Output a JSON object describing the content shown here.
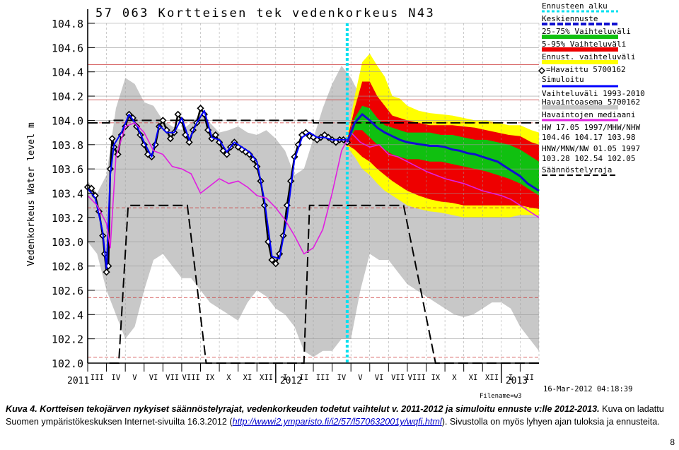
{
  "chart_data": {
    "type": "line",
    "title": "57 063 Kortteisen tek vedenkorkeus N43",
    "ylabel": "Vedenkorkeus Water level m",
    "ylim": [
      102.0,
      104.8
    ],
    "yticks": [
      "104.8",
      "104.6",
      "104.4",
      "104.2",
      "104.0",
      "103.8",
      "103.6",
      "103.4",
      "103.2",
      "103.0",
      "102.8",
      "102.6",
      "102.4",
      "102.2",
      "102.0"
    ],
    "x_months": [
      "III",
      "IV",
      "V",
      "VI",
      "VII",
      "VIII",
      "IX",
      "X",
      "XI",
      "XII",
      "I",
      "II",
      "III",
      "IV",
      "V",
      "VI",
      "VII",
      "VIII",
      "IX",
      "X",
      "XI",
      "XII",
      "I",
      "II"
    ],
    "year_labels": [
      "2011",
      "2012",
      "2013"
    ],
    "filename": "Filename=w3",
    "timestamp": "16-Mar-2012 04:18:39",
    "forecast_start_month_index": 13.8,
    "legend": [
      {
        "label": "Ennusteen alku",
        "color": "#00e0f0",
        "style": "dotted"
      },
      {
        "label": "Keskiennuste",
        "color": "#1010d0",
        "style": "thick-dashed"
      },
      {
        "label": "25-75% Vaihteluväli",
        "color": "#10c010",
        "style": "band"
      },
      {
        "label": "5-95% Vaihteluväli",
        "color": "#ee0000",
        "style": "band"
      },
      {
        "label": "Ennust. vaihteluväli",
        "color": "#ffff00",
        "style": "band"
      },
      {
        "label": "=Havaittu 5700162",
        "color": "#000000",
        "style": "marker"
      },
      {
        "label": "Simuloitu",
        "color": "#0000ff",
        "style": "line"
      },
      {
        "label": "Vaihteluväli 1993-2010 Havaintoasema 5700162",
        "color": "#c8c8c8",
        "style": "band"
      },
      {
        "label": "Havaintojen mediaani",
        "color": "#e020e0",
        "style": "line"
      },
      {
        "label": "HW 17.05 1997/MHW/NHW",
        "color": null,
        "style": "text"
      },
      {
        "label": "104.46 104.17 103.98",
        "color": null,
        "style": "text"
      },
      {
        "label": "HNW/MNW/NW 01.05 1997",
        "color": null,
        "style": "text"
      },
      {
        "label": "103.28 102.54 102.05",
        "color": null,
        "style": "text"
      },
      {
        "label": "Säännöstelyraja",
        "color": "#000000",
        "style": "dashed"
      }
    ],
    "reference_lines": [
      104.46,
      104.17,
      103.98,
      103.28,
      102.54,
      102.05
    ],
    "regulation_upper": {
      "x": [
        0,
        1.15,
        1.15,
        12,
        12,
        24
      ],
      "y": [
        103.98,
        103.98,
        104.0,
        104.0,
        103.98,
        103.98
      ]
    },
    "regulation_lower": {
      "x": [
        1.15,
        1.65,
        2.15,
        5.3,
        6.3,
        11.5,
        11.8,
        12.3,
        13.3,
        16.8,
        18.5,
        22.5,
        22.8,
        24
      ],
      "y": [
        102.0,
        102.0,
        103.3,
        103.3,
        102.0,
        102.0,
        103.3,
        103.3,
        103.3,
        103.3,
        102.0,
        102.0,
        102.0,
        102.0
      ]
    },
    "series": [
      {
        "name": "=Havaittu 5700162",
        "x": [
          0,
          0.2,
          0.4,
          0.6,
          0.8,
          0.9,
          1.0,
          1.1,
          1.2,
          1.3,
          1.4,
          1.6,
          1.8,
          2.0,
          2.2,
          2.4,
          2.6,
          2.8,
          3.0,
          3.2,
          3.4,
          3.6,
          3.8,
          4.0,
          4.2,
          4.4,
          4.6,
          4.8,
          5.0,
          5.2,
          5.4,
          5.6,
          5.8,
          6.0,
          6.2,
          6.4,
          6.6,
          6.8,
          7.0,
          7.2,
          7.4,
          7.6,
          7.8,
          8.0,
          8.2,
          8.4,
          8.6,
          8.8,
          9.0,
          9.2,
          9.4,
          9.6,
          9.8,
          10.0,
          10.2,
          10.4,
          10.6,
          10.8,
          11.0,
          11.2,
          11.4,
          11.6,
          11.8,
          12.0,
          12.2,
          12.4,
          12.6,
          12.8,
          13.0,
          13.2,
          13.4,
          13.6,
          13.8
        ],
        "y": [
          103.45,
          103.44,
          103.38,
          103.25,
          103.05,
          102.9,
          102.75,
          102.8,
          103.6,
          103.85,
          103.78,
          103.72,
          103.88,
          103.95,
          104.05,
          104.02,
          103.95,
          103.88,
          103.8,
          103.72,
          103.7,
          103.8,
          103.95,
          104.0,
          103.92,
          103.85,
          103.9,
          104.05,
          104.0,
          103.88,
          103.82,
          103.92,
          103.98,
          104.1,
          104.05,
          103.92,
          103.85,
          103.88,
          103.82,
          103.75,
          103.72,
          103.78,
          103.82,
          103.78,
          103.76,
          103.74,
          103.72,
          103.68,
          103.62,
          103.5,
          103.3,
          103.0,
          102.85,
          102.82,
          102.9,
          103.05,
          103.3,
          103.5,
          103.7,
          103.8,
          103.88,
          103.9,
          103.87,
          103.86,
          103.84,
          103.86,
          103.88,
          103.86,
          103.84,
          103.82,
          103.84,
          103.84,
          103.82
        ]
      },
      {
        "name": "Simuloitu",
        "x": [
          0,
          0.4,
          0.8,
          1.0,
          1.2,
          1.4,
          1.8,
          2.2,
          2.6,
          3.0,
          3.4,
          3.8,
          4.2,
          4.6,
          5.0,
          5.4,
          5.8,
          6.2,
          6.6,
          7.0,
          7.4,
          7.8,
          8.2,
          8.6,
          9.0,
          9.4,
          9.8,
          10.2,
          10.6,
          11.0,
          11.4,
          11.8,
          12.2,
          12.6,
          13.0,
          13.4,
          13.8
        ],
        "y": [
          103.44,
          103.36,
          103.08,
          102.78,
          103.55,
          103.8,
          103.9,
          104.05,
          103.96,
          103.82,
          103.7,
          103.96,
          103.9,
          103.9,
          104.02,
          103.84,
          103.98,
          104.08,
          103.86,
          103.84,
          103.74,
          103.82,
          103.78,
          103.74,
          103.66,
          103.34,
          102.88,
          102.86,
          103.2,
          103.68,
          103.86,
          103.9,
          103.86,
          103.86,
          103.84,
          103.84,
          103.84
        ]
      },
      {
        "name": "Havaintojen mediaani",
        "x": [
          0,
          0.5,
          1.0,
          1.2,
          1.5,
          2.0,
          2.5,
          3.0,
          3.5,
          4.0,
          4.5,
          5.0,
          5.5,
          6.0,
          6.5,
          7.0,
          7.5,
          8.0,
          8.5,
          9.0,
          9.5,
          10.0,
          10.5,
          11.0,
          11.5,
          12.0,
          12.5,
          13.0,
          13.5,
          14.0,
          14.5,
          15.0,
          15.5,
          16.0,
          16.5,
          17.0,
          17.5,
          18.0,
          18.5,
          19.0,
          19.5,
          20.0,
          20.5,
          21.0,
          21.5,
          22.0,
          22.5,
          23.0,
          23.5,
          24.0
        ],
        "y": [
          103.38,
          103.3,
          103.15,
          102.95,
          103.7,
          103.95,
          103.98,
          103.9,
          103.75,
          103.72,
          103.62,
          103.6,
          103.56,
          103.4,
          103.46,
          103.52,
          103.48,
          103.5,
          103.45,
          103.38,
          103.36,
          103.28,
          103.18,
          103.05,
          102.9,
          102.95,
          103.1,
          103.4,
          103.75,
          103.9,
          103.82,
          103.78,
          103.8,
          103.72,
          103.7,
          103.66,
          103.62,
          103.58,
          103.55,
          103.52,
          103.5,
          103.48,
          103.45,
          103.42,
          103.4,
          103.38,
          103.35,
          103.3,
          103.25,
          103.2
        ]
      },
      {
        "name": "Keskiennuste",
        "x": [
          13.8,
          14.2,
          14.6,
          15.0,
          15.4,
          15.8,
          16.2,
          16.6,
          17.0,
          17.4,
          17.8,
          18.2,
          18.6,
          19.0,
          19.4,
          19.8,
          20.2,
          20.6,
          21.0,
          21.4,
          21.8,
          22.2,
          22.6,
          23.0,
          23.4,
          23.8,
          24.0
        ],
        "y": [
          103.82,
          103.98,
          104.05,
          104.0,
          103.94,
          103.9,
          103.87,
          103.84,
          103.82,
          103.81,
          103.8,
          103.79,
          103.79,
          103.78,
          103.76,
          103.75,
          103.73,
          103.72,
          103.7,
          103.68,
          103.66,
          103.62,
          103.58,
          103.54,
          103.48,
          103.44,
          103.42
        ]
      }
    ],
    "bands": [
      {
        "name": "Ennust. vaihteluväli",
        "color": "#ffff00",
        "x": [
          13.8,
          14.2,
          14.6,
          15.0,
          15.4,
          15.8,
          16.2,
          16.6,
          17.0,
          17.6,
          18.2,
          18.8,
          19.4,
          20.0,
          20.6,
          21.2,
          21.8,
          22.4,
          23.0,
          23.6,
          24.0
        ],
        "low": [
          103.78,
          103.7,
          103.6,
          103.55,
          103.48,
          103.42,
          103.38,
          103.34,
          103.3,
          103.27,
          103.25,
          103.24,
          103.22,
          103.2,
          103.2,
          103.2,
          103.2,
          103.2,
          103.22,
          103.22,
          103.22
        ],
        "high": [
          103.86,
          104.2,
          104.48,
          104.55,
          104.45,
          104.36,
          104.2,
          104.18,
          104.12,
          104.08,
          104.06,
          104.05,
          104.04,
          104.02,
          104.0,
          104.0,
          103.98,
          103.96,
          103.96,
          103.92,
          103.9
        ]
      },
      {
        "name": "5-95% Vaihteluväli",
        "color": "#ee0000",
        "x": [
          13.8,
          14.2,
          14.6,
          15.0,
          15.4,
          15.8,
          16.2,
          16.6,
          17.0,
          17.6,
          18.2,
          18.8,
          19.4,
          20.0,
          20.6,
          21.2,
          21.8,
          22.4,
          23.0,
          23.6,
          24.0
        ],
        "low": [
          103.8,
          103.76,
          103.7,
          103.66,
          103.6,
          103.55,
          103.5,
          103.46,
          103.42,
          103.38,
          103.35,
          103.33,
          103.32,
          103.3,
          103.3,
          103.3,
          103.3,
          103.3,
          103.3,
          103.28,
          103.27
        ],
        "high": [
          103.84,
          104.1,
          104.32,
          104.32,
          104.2,
          104.12,
          104.04,
          104.02,
          104.0,
          103.98,
          103.96,
          103.96,
          103.96,
          103.95,
          103.94,
          103.92,
          103.9,
          103.88,
          103.87,
          103.82,
          103.8
        ]
      },
      {
        "name": "25-75% Vaihteluväli",
        "color": "#10c010",
        "x": [
          13.8,
          14.2,
          14.6,
          15.0,
          15.4,
          15.8,
          16.2,
          16.6,
          17.0,
          17.6,
          18.2,
          18.8,
          19.4,
          20.0,
          20.6,
          21.2,
          21.8,
          22.4,
          23.0,
          23.6,
          24.0
        ],
        "low": [
          103.82,
          103.92,
          103.92,
          103.86,
          103.8,
          103.76,
          103.72,
          103.7,
          103.68,
          103.68,
          103.66,
          103.66,
          103.64,
          103.62,
          103.6,
          103.58,
          103.55,
          103.52,
          103.48,
          103.42,
          103.38
        ],
        "high": [
          103.83,
          104.02,
          104.12,
          104.1,
          104.02,
          103.96,
          103.94,
          103.92,
          103.9,
          103.9,
          103.9,
          103.88,
          103.88,
          103.86,
          103.84,
          103.84,
          103.82,
          103.8,
          103.76,
          103.7,
          103.66
        ]
      },
      {
        "name": "Vaihteluväli 1993-2010 Havaintoasema 5700162",
        "color": "#c8c8c8",
        "x": [
          0,
          0.5,
          1.0,
          1.5,
          2.0,
          2.5,
          3.0,
          3.5,
          4.0,
          4.5,
          5.0,
          5.5,
          6.0,
          6.5,
          7.0,
          7.5,
          8.0,
          8.5,
          9.0,
          9.5,
          10.0,
          10.5,
          11.0,
          11.5,
          12.0,
          12.5,
          13.0,
          13.5,
          14.0,
          14.5,
          15.0,
          15.5,
          16.0,
          16.5,
          17.0,
          17.5,
          18.0,
          18.5,
          19.0,
          19.5,
          20.0,
          20.5,
          21.0,
          21.5,
          22.0,
          22.5,
          23.0,
          23.5,
          24.0
        ],
        "low": [
          103.0,
          102.9,
          102.6,
          102.4,
          102.2,
          102.3,
          102.6,
          102.85,
          102.9,
          102.8,
          102.7,
          102.7,
          102.6,
          102.5,
          102.45,
          102.4,
          102.35,
          102.5,
          102.6,
          102.55,
          102.45,
          102.4,
          102.3,
          102.1,
          102.05,
          102.1,
          102.1,
          102.2,
          102.2,
          102.6,
          102.9,
          102.85,
          102.85,
          102.75,
          102.65,
          102.6,
          102.55,
          102.5,
          102.45,
          102.4,
          102.38,
          102.4,
          102.45,
          102.5,
          102.5,
          102.45,
          102.3,
          102.2,
          102.1
        ],
        "high": [
          103.5,
          103.4,
          103.55,
          104.1,
          104.35,
          104.3,
          104.15,
          104.12,
          104.0,
          103.95,
          103.92,
          103.98,
          104.05,
          103.98,
          103.9,
          103.92,
          103.95,
          103.9,
          103.88,
          103.92,
          103.85,
          103.75,
          103.55,
          103.6,
          103.85,
          104.1,
          104.3,
          104.45,
          104.35,
          104.2,
          104.15,
          104.1,
          104.05,
          104.02,
          104.0,
          104.0,
          103.98,
          103.98,
          103.95,
          103.95,
          103.95,
          103.92,
          103.92,
          103.9,
          103.9,
          103.88,
          103.8,
          103.7,
          103.62
        ]
      }
    ]
  },
  "caption": {
    "label": "Kuva 4. Kortteisen tekojärven nykyiset säännöstelyrajat, vedenkorkeuden todetut vaihtelut v. 2011-2012 ja simuloitu ennuste v:lle 2012-2013.",
    "text1": " Kuva on ladattu Suomen ympäristökeskuksen Internet-sivuilta 16.3.2012 (",
    "link": "http://wwwi2.ymparisto.fi/i2/57/l570632001y/wqfi.html",
    "text2": "). Sivustolla on myös lyhyen ajan tuloksia ja ennusteita."
  },
  "page_number": "8"
}
